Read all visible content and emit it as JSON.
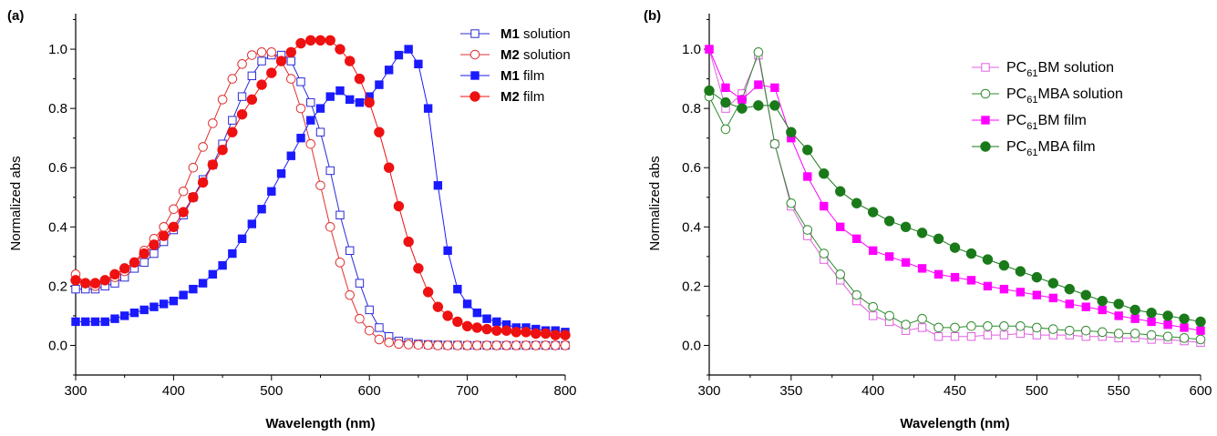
{
  "chart_data": [
    {
      "panel_label": "(a)",
      "type": "line",
      "xlabel": "Wavelength (nm)",
      "ylabel": "Normalized abs",
      "xlim": [
        300,
        800
      ],
      "ylim": [
        -0.1,
        1.12
      ],
      "xticks": [
        300,
        400,
        500,
        600,
        700,
        800
      ],
      "yticks": [
        0.0,
        0.2,
        0.4,
        0.6,
        0.8,
        1.0
      ],
      "xtick_labels": [
        "300",
        "400",
        "500",
        "600",
        "700",
        "800"
      ],
      "ytick_labels": [
        "0.0",
        "0.2",
        "0.4",
        "0.6",
        "0.8",
        "1.0"
      ],
      "legend_position": "top-right",
      "series": [
        {
          "name_bold": "M1",
          "name_rest": " solution",
          "color": "#2b2bd6",
          "marker": "open-square",
          "x": [
            300,
            310,
            320,
            330,
            340,
            350,
            360,
            370,
            380,
            390,
            400,
            410,
            420,
            430,
            440,
            450,
            460,
            470,
            480,
            490,
            500,
            510,
            520,
            530,
            540,
            550,
            560,
            570,
            580,
            590,
            600,
            610,
            620,
            630,
            640,
            650,
            660,
            670,
            680,
            690,
            700,
            710,
            720,
            730,
            740,
            750,
            760,
            770,
            780,
            790,
            800
          ],
          "y": [
            0.19,
            0.19,
            0.19,
            0.2,
            0.21,
            0.23,
            0.26,
            0.28,
            0.31,
            0.35,
            0.39,
            0.44,
            0.5,
            0.56,
            0.61,
            0.68,
            0.76,
            0.84,
            0.91,
            0.96,
            0.98,
            0.98,
            0.96,
            0.89,
            0.82,
            0.72,
            0.59,
            0.44,
            0.32,
            0.21,
            0.12,
            0.06,
            0.03,
            0.015,
            0.01,
            0.005,
            0.003,
            0.002,
            0.001,
            0.001,
            0.0,
            0.0,
            0.0,
            0.0,
            0.0,
            0.0,
            0.0,
            0.0,
            0.0,
            0.0,
            0.0
          ]
        },
        {
          "name_bold": "M2",
          "name_rest": " solution",
          "color": "#e03030",
          "marker": "open-circle",
          "x": [
            300,
            310,
            320,
            330,
            340,
            350,
            360,
            370,
            380,
            390,
            400,
            410,
            420,
            430,
            440,
            450,
            460,
            470,
            480,
            490,
            500,
            510,
            520,
            530,
            540,
            550,
            560,
            570,
            580,
            590,
            600,
            610,
            620,
            630,
            640,
            650,
            660,
            670,
            680,
            690,
            700,
            710,
            720,
            730,
            740,
            750,
            760,
            770,
            780,
            790,
            800
          ],
          "y": [
            0.24,
            0.21,
            0.2,
            0.22,
            0.23,
            0.25,
            0.28,
            0.32,
            0.36,
            0.4,
            0.46,
            0.52,
            0.6,
            0.67,
            0.75,
            0.83,
            0.9,
            0.95,
            0.98,
            0.99,
            0.99,
            0.96,
            0.9,
            0.8,
            0.68,
            0.54,
            0.4,
            0.28,
            0.17,
            0.09,
            0.05,
            0.02,
            0.01,
            0.005,
            0.003,
            0.002,
            0.001,
            0.0,
            0.0,
            0.0,
            0.0,
            0.0,
            0.0,
            0.0,
            0.0,
            0.0,
            0.0,
            0.0,
            0.0,
            0.0,
            0.0
          ]
        },
        {
          "name_bold": "M1",
          "name_rest": " film",
          "color": "#1a1aff",
          "marker": "filled-square",
          "x": [
            300,
            310,
            320,
            330,
            340,
            350,
            360,
            370,
            380,
            390,
            400,
            410,
            420,
            430,
            440,
            450,
            460,
            470,
            480,
            490,
            500,
            510,
            520,
            530,
            540,
            550,
            560,
            570,
            580,
            590,
            600,
            610,
            620,
            630,
            640,
            650,
            660,
            670,
            680,
            690,
            700,
            710,
            720,
            730,
            740,
            750,
            760,
            770,
            780,
            790,
            800
          ],
          "y": [
            0.08,
            0.08,
            0.08,
            0.08,
            0.09,
            0.1,
            0.11,
            0.12,
            0.13,
            0.14,
            0.15,
            0.17,
            0.19,
            0.21,
            0.24,
            0.27,
            0.31,
            0.36,
            0.41,
            0.46,
            0.52,
            0.58,
            0.64,
            0.7,
            0.76,
            0.8,
            0.84,
            0.86,
            0.83,
            0.82,
            0.84,
            0.88,
            0.93,
            0.98,
            1.0,
            0.95,
            0.8,
            0.54,
            0.32,
            0.19,
            0.14,
            0.11,
            0.09,
            0.08,
            0.07,
            0.06,
            0.06,
            0.055,
            0.05,
            0.05,
            0.045
          ]
        },
        {
          "name_bold": "M2",
          "name_rest": " film",
          "color": "#ee1111",
          "marker": "filled-circle",
          "x": [
            300,
            310,
            320,
            330,
            340,
            350,
            360,
            370,
            380,
            390,
            400,
            410,
            420,
            430,
            440,
            450,
            460,
            470,
            480,
            490,
            500,
            510,
            520,
            530,
            540,
            550,
            560,
            570,
            580,
            590,
            600,
            610,
            620,
            630,
            640,
            650,
            660,
            670,
            680,
            690,
            700,
            710,
            720,
            730,
            740,
            750,
            760,
            770,
            780,
            790,
            800
          ],
          "y": [
            0.22,
            0.21,
            0.21,
            0.22,
            0.24,
            0.26,
            0.28,
            0.31,
            0.34,
            0.37,
            0.4,
            0.45,
            0.5,
            0.55,
            0.61,
            0.66,
            0.72,
            0.78,
            0.83,
            0.88,
            0.92,
            0.96,
            0.99,
            1.02,
            1.03,
            1.03,
            1.03,
            1.0,
            0.96,
            0.9,
            0.82,
            0.72,
            0.6,
            0.47,
            0.35,
            0.26,
            0.18,
            0.13,
            0.1,
            0.08,
            0.065,
            0.06,
            0.055,
            0.05,
            0.05,
            0.045,
            0.045,
            0.04,
            0.04,
            0.035,
            0.035
          ]
        }
      ]
    },
    {
      "panel_label": "(b)",
      "type": "line",
      "xlabel": "Wavelength (nm)",
      "ylabel": "Normalized abs",
      "xlim": [
        300,
        600
      ],
      "ylim": [
        -0.1,
        1.12
      ],
      "xticks": [
        300,
        350,
        400,
        450,
        500,
        550,
        600
      ],
      "yticks": [
        0.0,
        0.2,
        0.4,
        0.6,
        0.8,
        1.0
      ],
      "xtick_labels": [
        "300",
        "350",
        "400",
        "450",
        "500",
        "550",
        "600"
      ],
      "ytick_labels": [
        "0.0",
        "0.2",
        "0.4",
        "0.6",
        "0.8",
        "1.0"
      ],
      "legend_position": "top-right",
      "series": [
        {
          "name_pre": "PC",
          "name_sub": "61",
          "name_post": "BM solution",
          "color": "#e060e0",
          "marker": "open-square",
          "x": [
            300,
            310,
            320,
            330,
            340,
            350,
            360,
            370,
            380,
            390,
            400,
            410,
            420,
            430,
            440,
            450,
            460,
            470,
            480,
            490,
            500,
            510,
            520,
            530,
            540,
            550,
            560,
            570,
            580,
            590,
            600
          ],
          "y": [
            1.0,
            0.8,
            0.85,
            0.98,
            0.68,
            0.47,
            0.37,
            0.29,
            0.22,
            0.15,
            0.1,
            0.08,
            0.05,
            0.06,
            0.03,
            0.03,
            0.03,
            0.035,
            0.035,
            0.04,
            0.035,
            0.035,
            0.035,
            0.03,
            0.03,
            0.025,
            0.025,
            0.02,
            0.02,
            0.015,
            0.01
          ]
        },
        {
          "name_pre": "PC",
          "name_sub": "61",
          "name_post": "MBA solution",
          "color": "#2e8b2e",
          "marker": "open-circle",
          "x": [
            300,
            310,
            320,
            330,
            340,
            350,
            360,
            370,
            380,
            390,
            400,
            410,
            420,
            430,
            440,
            450,
            460,
            470,
            480,
            490,
            500,
            510,
            520,
            530,
            540,
            550,
            560,
            570,
            580,
            590,
            600
          ],
          "y": [
            0.84,
            0.73,
            0.83,
            0.99,
            0.68,
            0.48,
            0.39,
            0.31,
            0.24,
            0.17,
            0.13,
            0.1,
            0.07,
            0.09,
            0.06,
            0.06,
            0.065,
            0.065,
            0.065,
            0.065,
            0.06,
            0.055,
            0.05,
            0.05,
            0.045,
            0.04,
            0.04,
            0.035,
            0.03,
            0.025,
            0.02
          ]
        },
        {
          "name_pre": "PC",
          "name_sub": "61",
          "name_post": "BM film",
          "color": "#ff00ff",
          "marker": "filled-square",
          "x": [
            300,
            310,
            320,
            330,
            340,
            350,
            360,
            370,
            380,
            390,
            400,
            410,
            420,
            430,
            440,
            450,
            460,
            470,
            480,
            490,
            500,
            510,
            520,
            530,
            540,
            550,
            560,
            570,
            580,
            590,
            600
          ],
          "y": [
            1.0,
            0.87,
            0.83,
            0.88,
            0.87,
            0.7,
            0.57,
            0.47,
            0.4,
            0.36,
            0.32,
            0.3,
            0.28,
            0.26,
            0.24,
            0.23,
            0.22,
            0.2,
            0.19,
            0.18,
            0.17,
            0.16,
            0.14,
            0.13,
            0.12,
            0.1,
            0.09,
            0.08,
            0.07,
            0.06,
            0.05
          ]
        },
        {
          "name_pre": "PC",
          "name_sub": "61",
          "name_post": "MBA film",
          "color": "#1a7a1a",
          "marker": "filled-circle",
          "x": [
            300,
            310,
            320,
            330,
            340,
            350,
            360,
            370,
            380,
            390,
            400,
            410,
            420,
            430,
            440,
            450,
            460,
            470,
            480,
            490,
            500,
            510,
            520,
            530,
            540,
            550,
            560,
            570,
            580,
            590,
            600
          ],
          "y": [
            0.86,
            0.82,
            0.8,
            0.81,
            0.81,
            0.72,
            0.66,
            0.58,
            0.52,
            0.48,
            0.45,
            0.42,
            0.4,
            0.38,
            0.36,
            0.33,
            0.31,
            0.29,
            0.27,
            0.25,
            0.23,
            0.21,
            0.19,
            0.17,
            0.15,
            0.14,
            0.12,
            0.11,
            0.1,
            0.09,
            0.08
          ]
        }
      ]
    }
  ]
}
